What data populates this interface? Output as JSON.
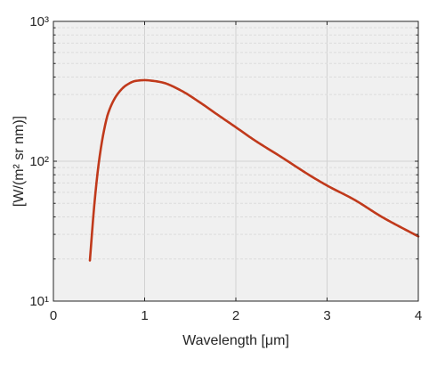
{
  "chart_data": {
    "type": "line",
    "title": "",
    "xlabel": "Wavelength [μm]",
    "ylabel": "[W/(m² sr nm)]",
    "xlim": [
      0,
      4
    ],
    "ylim": [
      10,
      1000
    ],
    "yscale": "log",
    "grid": true,
    "x_ticks": [
      0,
      1,
      2,
      3,
      4
    ],
    "x_tick_labels": [
      "0",
      "1",
      "2",
      "3",
      "4"
    ],
    "y_ticks": [
      10,
      100,
      1000
    ],
    "y_tick_labels": [
      "10¹",
      "10²",
      "10³"
    ],
    "series": [
      {
        "color": "#c0391b",
        "x": [
          0.4,
          0.45,
          0.5,
          0.55,
          0.6,
          0.7,
          0.8,
          0.9,
          1.0,
          1.1,
          1.2,
          1.4,
          1.6,
          1.8,
          2.0,
          2.2,
          2.5,
          2.8,
          3.0,
          3.3,
          3.6,
          4.0
        ],
        "y": [
          19.5,
          50,
          100,
          160,
          220,
          300,
          350,
          375,
          380,
          375,
          365,
          320,
          265,
          215,
          175,
          142,
          107,
          80,
          67,
          53,
          40,
          29
        ]
      }
    ]
  }
}
